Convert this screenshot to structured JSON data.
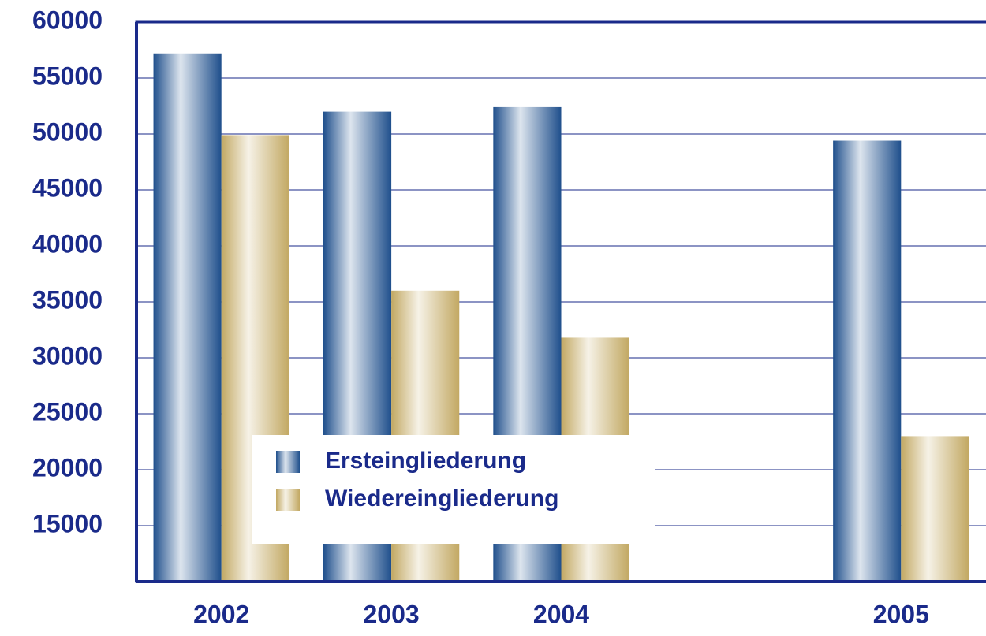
{
  "chart_data": {
    "type": "bar",
    "categories": [
      "2002",
      "2003",
      "2004",
      null,
      "2005"
    ],
    "series": [
      {
        "name": "Ersteingliederung",
        "color": "#1f4f8c",
        "values": [
          57200,
          52000,
          52400,
          null,
          49400
        ]
      },
      {
        "name": "Wiedereingliederung",
        "color": "#c2a862",
        "values": [
          49900,
          36000,
          31800,
          null,
          23000
        ]
      }
    ],
    "ylim": [
      10000,
      60000
    ],
    "yticks": [
      15000,
      20000,
      25000,
      30000,
      35000,
      40000,
      45000,
      50000,
      55000,
      60000
    ],
    "grid": true,
    "legend": "bottom-left"
  }
}
